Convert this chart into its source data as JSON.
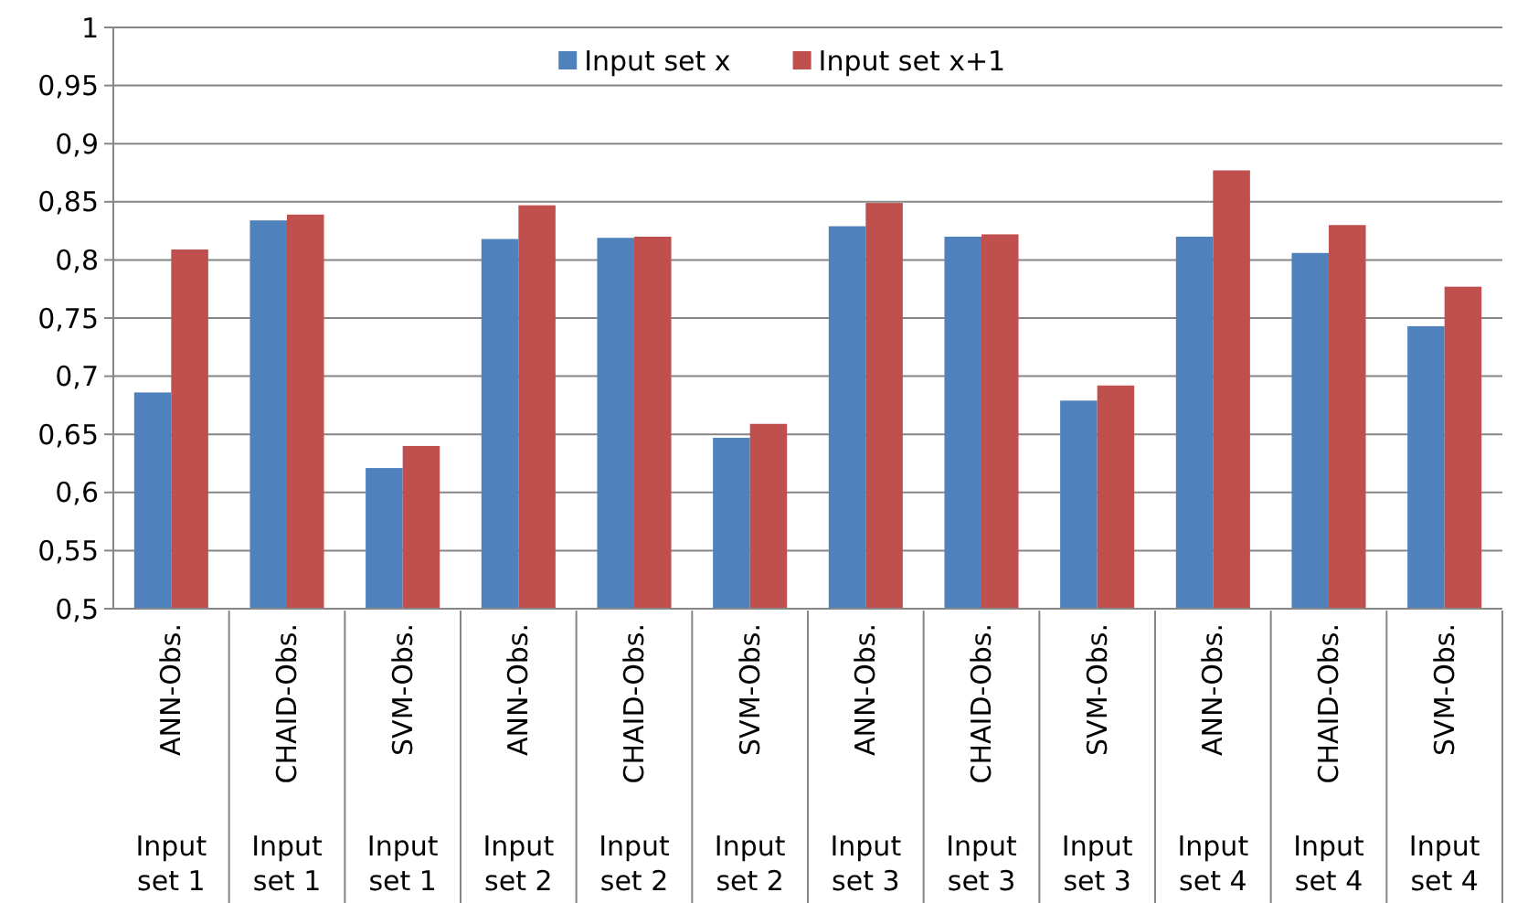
{
  "chart_data": {
    "type": "bar",
    "categories": [
      "ANN-Obs.\nInput set 1",
      "CHAID-Obs.\nInput set 1",
      "SVM-Obs.\nInput set 1",
      "ANN-Obs.\nInput set 2",
      "CHAID-Obs.\nInput set 2",
      "SVM-Obs.\nInput set 2",
      "ANN-Obs.\nInput set 3",
      "CHAID-Obs.\nInput set 3",
      "SVM-Obs.\nInput set 3",
      "ANN-Obs.\nInput set 4",
      "CHAID-Obs.\nInput set 4",
      "SVM-Obs.\nInput set 4"
    ],
    "series": [
      {
        "name": "Input set x",
        "color": "#4f81bd",
        "values": [
          0.686,
          0.834,
          0.621,
          0.818,
          0.819,
          0.647,
          0.829,
          0.82,
          0.679,
          0.82,
          0.806,
          0.743
        ]
      },
      {
        "name": "Input set x+1",
        "color": "#c0504d",
        "values": [
          0.809,
          0.839,
          0.64,
          0.847,
          0.82,
          0.659,
          0.849,
          0.822,
          0.692,
          0.877,
          0.83,
          0.777
        ]
      }
    ],
    "ylim": [
      0.5,
      1
    ],
    "yticks": [
      {
        "value": 0.5,
        "label": "0,5"
      },
      {
        "value": 0.55,
        "label": "0,55"
      },
      {
        "value": 0.6,
        "label": "0,6"
      },
      {
        "value": 0.65,
        "label": "0,65"
      },
      {
        "value": 0.7,
        "label": "0,7"
      },
      {
        "value": 0.75,
        "label": "0,75"
      },
      {
        "value": 0.8,
        "label": "0,8"
      },
      {
        "value": 0.85,
        "label": "0,85"
      },
      {
        "value": 0.9,
        "label": "0,9"
      },
      {
        "value": 0.95,
        "label": "0,95"
      },
      {
        "value": 1,
        "label": "1"
      }
    ],
    "grid": true,
    "legend": "top"
  }
}
